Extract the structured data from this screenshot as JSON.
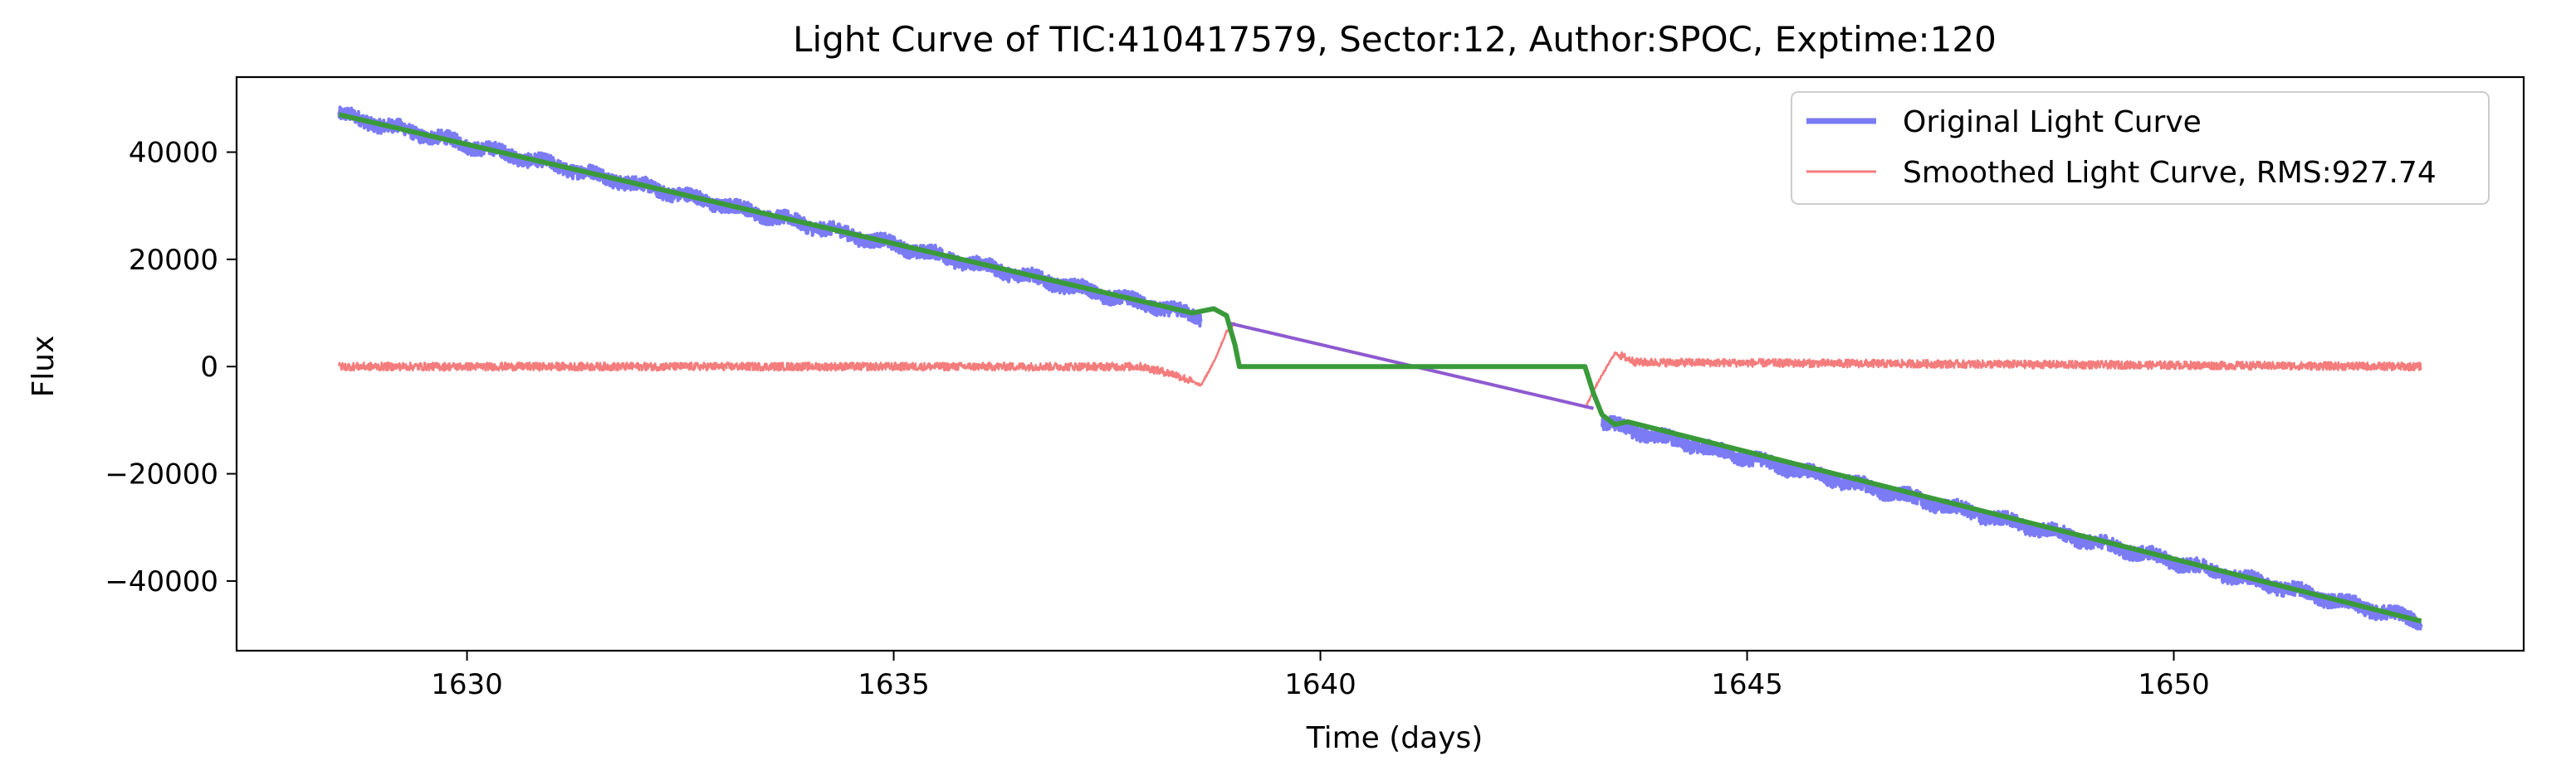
{
  "chart_data": {
    "type": "line",
    "title": "Light Curve of TIC:410417579, Sector:12, Author:SPOC, Exptime:120",
    "xlabel": "Time (days)",
    "ylabel": "Flux",
    "xlim": [
      1627.3,
      1654.1
    ],
    "ylim": [
      -53000,
      54000
    ],
    "xticks": [
      1630,
      1635,
      1640,
      1645,
      1650
    ],
    "xtick_labels": [
      "1630",
      "1635",
      "1640",
      "1645",
      "1650"
    ],
    "yticks": [
      -40000,
      -20000,
      0,
      20000,
      40000
    ],
    "ytick_labels": [
      "−40000",
      "−20000",
      "0",
      "20000",
      "40000"
    ],
    "grid": false,
    "legend_position": "top-right",
    "series": [
      {
        "name": "Original Light Curve",
        "color": "#7b7bf5",
        "style": "noisy-band",
        "x": [
          1628.5,
          1638.6,
          1643.3,
          1652.9
        ],
        "y": [
          47000,
          9200,
          -10500,
          -47500
        ]
      },
      {
        "name": "Smoothed Light Curve, RMS:927.74",
        "color": "#f47c7c",
        "style": "noisy-line",
        "x": [
          1628.5,
          1637.9,
          1638.3,
          1638.6,
          1638.75,
          1638.9,
          1639.0,
          1643.1,
          1643.25,
          1643.45,
          1643.7,
          1652.9
        ],
        "y": [
          0,
          0,
          -1500,
          -3500,
          800,
          6500,
          8200,
          -7800,
          -3000,
          2500,
          800,
          0
        ]
      }
    ],
    "trend_line": {
      "color": "#3a9a3a",
      "x": [
        1628.5,
        1638.5,
        1638.75,
        1638.9,
        1639.0,
        1639.05,
        1643.1,
        1643.2,
        1643.3,
        1643.45,
        1643.6,
        1652.9
      ],
      "y": [
        47000,
        10000,
        10800,
        9500,
        4000,
        0,
        0,
        -5000,
        -9000,
        -10800,
        -10300,
        -47500
      ]
    },
    "gap_line": {
      "color": "#8e5ad0",
      "x": [
        1638.9,
        1643.2
      ],
      "y": [
        8200,
        -7800
      ]
    }
  }
}
